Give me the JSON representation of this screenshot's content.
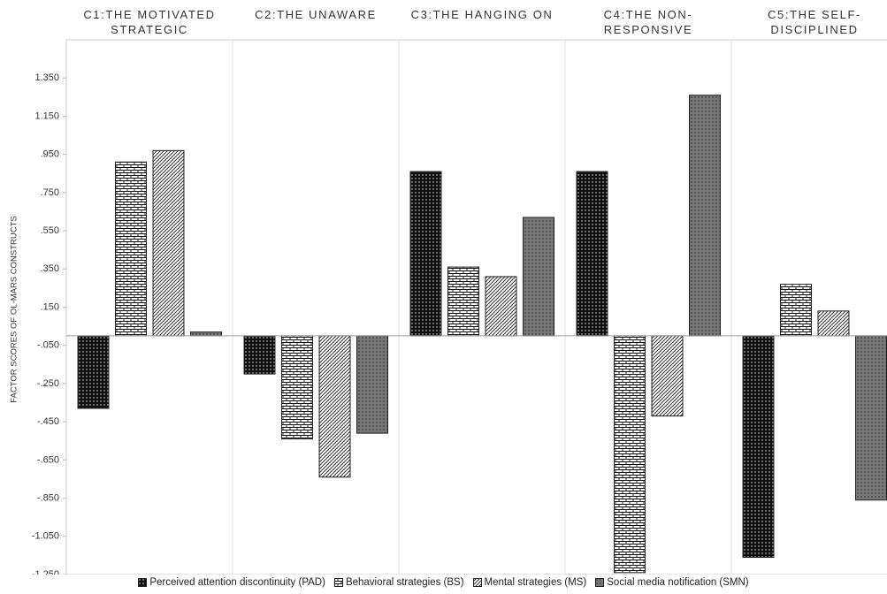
{
  "chart_data": {
    "type": "bar",
    "y_label": "FACTOR SCORES OF OL-MARS CONSTRUCTS",
    "categories": [
      "C1:THE MOTIVATED STRATEGIC",
      "C2:THE UNAWARE",
      "C3:THE HANGING ON",
      "C4:THE NON-RESPONSIVE",
      "C5:THE SELF-DISCIPLINED"
    ],
    "series": [
      {
        "name": "Perceived attention discontinuity (PAD)",
        "color": "#111111",
        "values": [
          -0.38,
          -0.2,
          0.86,
          0.86,
          -1.16
        ]
      },
      {
        "name": "Behavioral strategies (BS)",
        "color": "#ffffff",
        "values": [
          0.91,
          -0.54,
          0.36,
          -1.24,
          0.27
        ]
      },
      {
        "name": "Mental strategies (MS)",
        "color": "#ffffff",
        "values": [
          0.97,
          -0.74,
          0.31,
          -0.42,
          0.13
        ]
      },
      {
        "name": "Social media notification (SMN)",
        "color": "#777777",
        "values": [
          0.02,
          -0.51,
          0.62,
          1.26,
          -0.86
        ]
      }
    ],
    "ylim": [
      -1.25,
      1.55
    ],
    "yticks": [
      {
        "value": 1.35,
        "label": "1.350"
      },
      {
        "value": 1.15,
        "label": "1.150"
      },
      {
        "value": 0.95,
        "label": ".950"
      },
      {
        "value": 0.75,
        "label": ".750"
      },
      {
        "value": 0.55,
        "label": ".550"
      },
      {
        "value": 0.35,
        "label": ".350"
      },
      {
        "value": 0.15,
        "label": ".150"
      },
      {
        "value": -0.05,
        "label": "-.050"
      },
      {
        "value": -0.25,
        "label": "-.250"
      },
      {
        "value": -0.45,
        "label": "-.450"
      },
      {
        "value": -0.65,
        "label": "-.650"
      },
      {
        "value": -0.85,
        "label": "-.850"
      },
      {
        "value": -1.05,
        "label": "-1.050"
      },
      {
        "value": -1.25,
        "label": "-1.250"
      }
    ],
    "grid": false,
    "legend": "bottom"
  }
}
